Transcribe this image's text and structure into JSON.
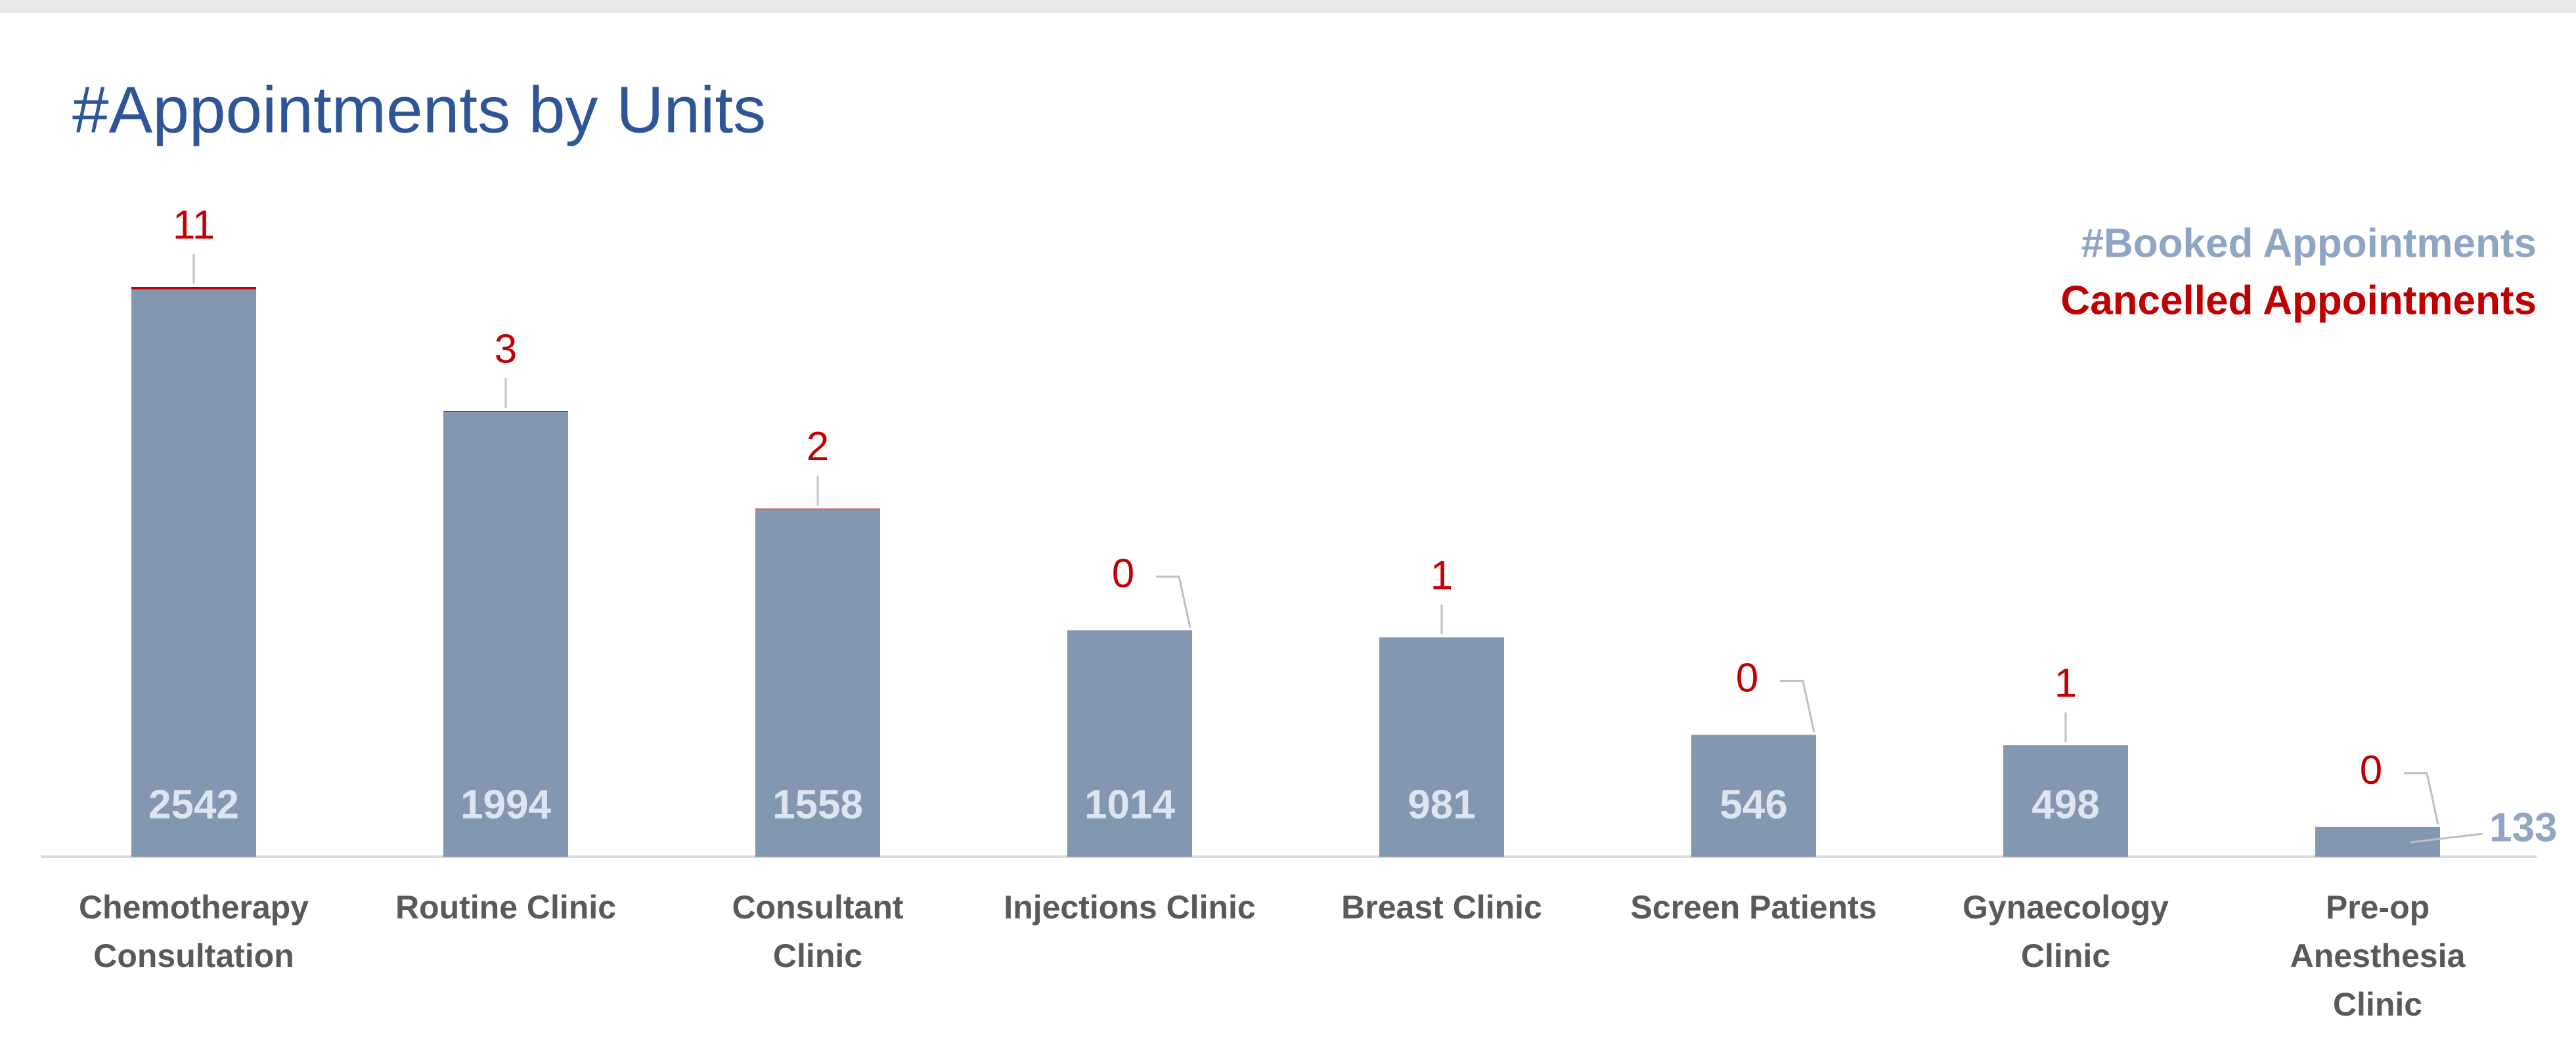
{
  "chart_data": {
    "type": "bar",
    "stacked": true,
    "title": "#Appointments by Units",
    "categories": [
      "Chemotherapy\nConsultation",
      "Routine Clinic",
      "Consultant\nClinic",
      "Injections Clinic",
      "Breast Clinic",
      "Screen Patients",
      "Gynaecology\nClinic",
      "Pre-op\nAnesthesia\nClinic"
    ],
    "series": [
      {
        "name": "#Booked Appointments",
        "color": "#8497b0",
        "values": [
          2542,
          1994,
          1558,
          1014,
          981,
          546,
          498,
          133
        ]
      },
      {
        "name": "Cancelled Appointments",
        "color": "#c00000",
        "values": [
          11,
          3,
          2,
          0,
          1,
          0,
          1,
          0
        ]
      }
    ],
    "legend": "upper right"
  }
}
